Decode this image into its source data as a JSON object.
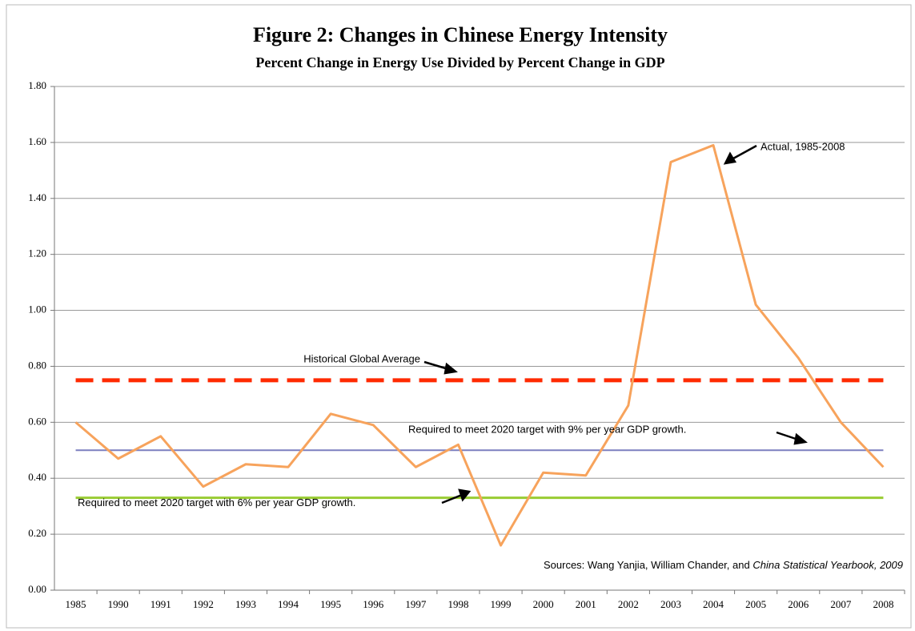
{
  "chart_data": {
    "type": "line",
    "title": "Figure 2: Changes in Chinese Energy Intensity",
    "subtitle": "Percent Change in Energy Use Divided by Percent Change in GDP",
    "categories": [
      "1985",
      "1990",
      "1991",
      "1992",
      "1993",
      "1994",
      "1995",
      "1996",
      "1997",
      "1998",
      "1999",
      "2000",
      "2001",
      "2002",
      "2003",
      "2004",
      "2005",
      "2006",
      "2007",
      "2008"
    ],
    "series": [
      {
        "name": "Actual, 1985-2008",
        "color": "#f7a35c",
        "values": [
          0.6,
          0.47,
          0.55,
          0.37,
          0.45,
          0.44,
          0.63,
          0.59,
          0.44,
          0.52,
          0.16,
          0.42,
          0.41,
          0.66,
          1.53,
          1.59,
          1.02,
          0.83,
          0.6,
          0.44
        ]
      }
    ],
    "reference_lines": [
      {
        "label": "Historical Global Average",
        "value": 0.75,
        "color": "#ff2a00",
        "dashed": true
      },
      {
        "label": "Required to meet 2020 target with 9% per year GDP growth.",
        "value": 0.5,
        "color": "#7b7fbf",
        "dashed": false
      },
      {
        "label": "Required to meet 2020 target with 6% per year GDP growth.",
        "value": 0.33,
        "color": "#99cc33",
        "dashed": false
      }
    ],
    "source": [
      "Sources: Wang Yanjia, William Chander, and ",
      "China Statistical Yearbook, 2009"
    ],
    "ylim": [
      0,
      1.8
    ],
    "yticks": [
      {
        "value": 0,
        "label": "0.00"
      },
      {
        "value": 0.2,
        "label": "0.20"
      },
      {
        "value": 0.4,
        "label": "0.40"
      },
      {
        "value": 0.6,
        "label": "0.60"
      },
      {
        "value": 0.8,
        "label": "0.80"
      },
      {
        "value": 1.0,
        "label": "1.00"
      },
      {
        "value": 1.2,
        "label": "1.20"
      },
      {
        "value": 1.4,
        "label": "1.40"
      },
      {
        "value": 1.6,
        "label": "1.60"
      },
      {
        "value": 1.8,
        "label": "1.80"
      }
    ],
    "grid": true
  }
}
